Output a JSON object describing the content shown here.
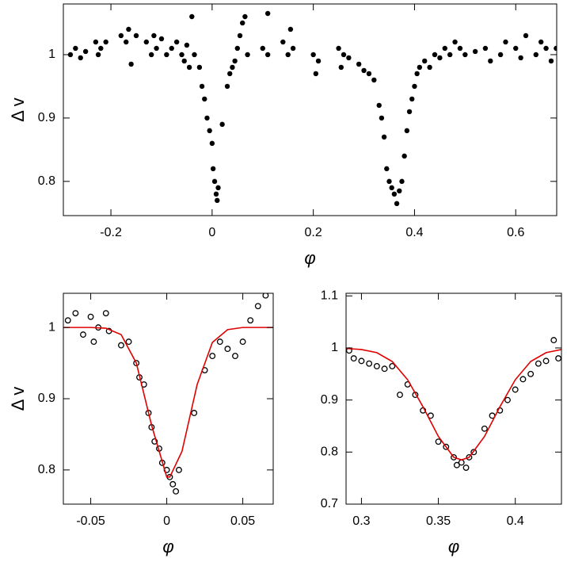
{
  "chart_data": [
    {
      "type": "scatter",
      "xlabel": "φ",
      "ylabel": "Δ v",
      "marker": "filled",
      "color": "#000000",
      "xlim": [
        -0.294,
        0.681
      ],
      "ylim": [
        0.746,
        1.08
      ],
      "xticks": [
        -0.2,
        0,
        0.2,
        0.4,
        0.6
      ],
      "yticks": [
        0.8,
        0.9,
        1
      ],
      "x": [
        -0.28,
        -0.27,
        -0.26,
        -0.25,
        -0.23,
        -0.225,
        -0.22,
        -0.21,
        -0.18,
        -0.17,
        -0.165,
        -0.16,
        -0.15,
        -0.13,
        -0.12,
        -0.115,
        -0.11,
        -0.1,
        -0.09,
        -0.08,
        -0.07,
        -0.06,
        -0.055,
        -0.05,
        -0.045,
        -0.04,
        -0.035,
        -0.025,
        -0.02,
        -0.015,
        -0.01,
        -0.005,
        0,
        0.002,
        0.005,
        0.008,
        0.01,
        0.012,
        0.02,
        0.03,
        0.035,
        0.04,
        0.045,
        0.05,
        0.055,
        0.06,
        0.065,
        0.07,
        0.1,
        0.11,
        0.11,
        0.14,
        0.15,
        0.155,
        0.16,
        0.2,
        0.205,
        0.21,
        0.25,
        0.255,
        0.26,
        0.27,
        0.29,
        0.3,
        0.31,
        0.32,
        0.33,
        0.335,
        0.34,
        0.345,
        0.35,
        0.355,
        0.36,
        0.365,
        0.37,
        0.375,
        0.38,
        0.385,
        0.39,
        0.395,
        0.4,
        0.405,
        0.41,
        0.42,
        0.43,
        0.44,
        0.45,
        0.46,
        0.47,
        0.48,
        0.49,
        0.5,
        0.52,
        0.54,
        0.55,
        0.57,
        0.58,
        0.6,
        0.61,
        0.62,
        0.64,
        0.65,
        0.66,
        0.67,
        0.68
      ],
      "values": [
        1.0,
        1.01,
        0.995,
        1.005,
        1.02,
        1.0,
        1.01,
        1.02,
        1.03,
        1.02,
        1.04,
        0.985,
        1.03,
        1.02,
        1.0,
        1.03,
        1.01,
        1.025,
        1.0,
        1.01,
        1.02,
        1.0,
        0.99,
        1.015,
        0.98,
        1.06,
        1.0,
        0.98,
        0.95,
        0.93,
        0.9,
        0.88,
        0.86,
        0.82,
        0.8,
        0.78,
        0.77,
        0.79,
        0.89,
        0.95,
        0.97,
        0.98,
        0.99,
        1.01,
        1.03,
        1.05,
        1.06,
        1.0,
        1.01,
        1.065,
        1.0,
        1.02,
        1.0,
        1.04,
        1.01,
        1.0,
        0.97,
        0.99,
        1.01,
        0.98,
        1.0,
        0.995,
        0.985,
        0.975,
        0.97,
        0.96,
        0.92,
        0.9,
        0.87,
        0.82,
        0.8,
        0.79,
        0.78,
        0.765,
        0.785,
        0.8,
        0.84,
        0.88,
        0.91,
        0.93,
        0.95,
        0.97,
        0.98,
        0.99,
        0.98,
        1.0,
        0.995,
        1.01,
        1.0,
        1.02,
        1.01,
        1.0,
        1.005,
        1.01,
        0.99,
        1.0,
        1.02,
        1.01,
        0.995,
        1.03,
        1.0,
        1.02,
        1.01,
        0.99,
        1.01
      ]
    },
    {
      "type": "scatter",
      "xlabel": "φ",
      "ylabel": "Δ v",
      "marker": "open",
      "color": "#000000",
      "xlim": [
        -0.068,
        0.07
      ],
      "ylim": [
        0.752,
        1.048
      ],
      "xticks": [
        -0.05,
        0,
        0.05
      ],
      "yticks": [
        0.8,
        0.9,
        1
      ],
      "x": [
        -0.065,
        -0.06,
        -0.055,
        -0.05,
        -0.048,
        -0.045,
        -0.04,
        -0.038,
        -0.03,
        -0.025,
        -0.02,
        -0.018,
        -0.015,
        -0.012,
        -0.01,
        -0.008,
        -0.005,
        -0.003,
        0,
        0.002,
        0.004,
        0.006,
        0.008,
        0.018,
        0.025,
        0.03,
        0.035,
        0.04,
        0.045,
        0.05,
        0.055,
        0.06,
        0.065
      ],
      "values": [
        1.01,
        1.02,
        0.99,
        1.015,
        0.98,
        1.0,
        1.02,
        0.995,
        0.975,
        0.98,
        0.95,
        0.93,
        0.92,
        0.88,
        0.86,
        0.84,
        0.83,
        0.81,
        0.8,
        0.79,
        0.78,
        0.77,
        0.8,
        0.88,
        0.94,
        0.96,
        0.98,
        0.97,
        0.96,
        0.98,
        1.01,
        1.03,
        1.045
      ],
      "fit": {
        "color": "#e00000",
        "x": [
          -0.068,
          -0.05,
          -0.04,
          -0.03,
          -0.02,
          -0.01,
          0,
          0.002,
          0.01,
          0.02,
          0.03,
          0.04,
          0.05,
          0.07
        ],
        "values": [
          1.0,
          1.0,
          0.999,
          0.99,
          0.95,
          0.863,
          0.79,
          0.79,
          0.826,
          0.92,
          0.979,
          0.997,
          1.0,
          1.0
        ]
      }
    },
    {
      "type": "scatter",
      "xlabel": "φ",
      "marker": "open",
      "color": "#000000",
      "xlim": [
        0.29,
        0.43
      ],
      "ylim": [
        0.7,
        1.105
      ],
      "xticks": [
        0.3,
        0.35,
        0.4
      ],
      "yticks": [
        0.7,
        0.8,
        0.9,
        1,
        1.1
      ],
      "x": [
        0.292,
        0.295,
        0.3,
        0.305,
        0.31,
        0.315,
        0.32,
        0.325,
        0.33,
        0.335,
        0.34,
        0.345,
        0.35,
        0.355,
        0.36,
        0.362,
        0.365,
        0.368,
        0.37,
        0.373,
        0.38,
        0.385,
        0.39,
        0.395,
        0.4,
        0.405,
        0.41,
        0.415,
        0.42,
        0.425,
        0.428
      ],
      "values": [
        0.995,
        0.98,
        0.975,
        0.97,
        0.965,
        0.96,
        0.965,
        0.91,
        0.93,
        0.91,
        0.88,
        0.87,
        0.82,
        0.81,
        0.79,
        0.775,
        0.78,
        0.77,
        0.79,
        0.8,
        0.845,
        0.87,
        0.88,
        0.9,
        0.92,
        0.94,
        0.95,
        0.97,
        0.975,
        1.015,
        0.98
      ],
      "fit": {
        "color": "#e00000",
        "x": [
          0.29,
          0.3,
          0.31,
          0.32,
          0.33,
          0.34,
          0.35,
          0.36,
          0.365,
          0.37,
          0.38,
          0.39,
          0.4,
          0.41,
          0.42,
          0.43
        ],
        "values": [
          0.999,
          0.997,
          0.991,
          0.974,
          0.939,
          0.887,
          0.83,
          0.79,
          0.785,
          0.79,
          0.83,
          0.887,
          0.939,
          0.974,
          0.991,
          0.997
        ]
      }
    }
  ]
}
